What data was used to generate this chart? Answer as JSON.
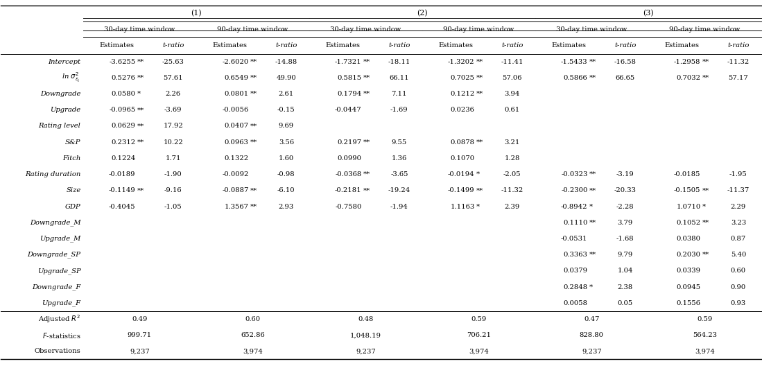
{
  "col_groups": [
    "(1)",
    "(2)",
    "(3)"
  ],
  "sub_labels": [
    "30-day time window",
    "90-day time window",
    "30-day time window",
    "90-day time window",
    "30-day time window",
    "90-day time window"
  ],
  "row_labels": [
    "Intercept",
    "ln_sigma",
    "Downgrade",
    "Upgrade",
    "Rating level",
    "S&P",
    "Fitch",
    "Rating duration",
    "Size",
    "GDP",
    "Downgrade_M",
    "Upgrade_M",
    "Downgrade_SP",
    "Upgrade_SP",
    "Downgrade_F",
    "Upgrade_F"
  ],
  "footer_labels": [
    "Adjusted R2",
    "F-statistics",
    "Observations"
  ],
  "data": {
    "col1_est": [
      "-3.6255",
      "0.5276",
      "0.0580",
      "-0.0965",
      "0.0629",
      "0.2312",
      "0.1224",
      "-0.0189",
      "-0.1149",
      "-0.4045",
      "",
      "",
      "",
      "",
      "",
      ""
    ],
    "col1_sig": [
      "**",
      "**",
      "*",
      "**",
      "**",
      "**",
      "",
      "",
      "**",
      "",
      "",
      "",
      "",
      "",
      "",
      ""
    ],
    "col1_t": [
      "-25.63",
      "57.61",
      "2.26",
      "-3.69",
      "17.92",
      "10.22",
      "1.71",
      "-1.90",
      "-9.16",
      "-1.05",
      "",
      "",
      "",
      "",
      "",
      ""
    ],
    "col2_est": [
      "-2.6020",
      "0.6549",
      "0.0801",
      "-0.0056",
      "0.0407",
      "0.0963",
      "0.1322",
      "-0.0092",
      "-0.0887",
      "1.3567",
      "",
      "",
      "",
      "",
      "",
      ""
    ],
    "col2_sig": [
      "**",
      "**",
      "**",
      "",
      "**",
      "**",
      "",
      "",
      "**",
      "**",
      "",
      "",
      "",
      "",
      "",
      ""
    ],
    "col2_t": [
      "-14.88",
      "49.90",
      "2.61",
      "-0.15",
      "9.69",
      "3.56",
      "1.60",
      "-0.98",
      "-6.10",
      "2.93",
      "",
      "",
      "",
      "",
      "",
      ""
    ],
    "col3_est": [
      "-1.7321",
      "0.5815",
      "0.1794",
      "-0.0447",
      "",
      "0.2197",
      "0.0990",
      "-0.0368",
      "-0.2181",
      "-0.7580",
      "",
      "",
      "",
      "",
      "",
      ""
    ],
    "col3_sig": [
      "**",
      "**",
      "**",
      "",
      "",
      "**",
      "",
      "**",
      "**",
      "",
      "",
      "",
      "",
      "",
      "",
      ""
    ],
    "col3_t": [
      "-18.11",
      "66.11",
      "7.11",
      "-1.69",
      "",
      "9.55",
      "1.36",
      "-3.65",
      "-19.24",
      "-1.94",
      "",
      "",
      "",
      "",
      "",
      ""
    ],
    "col4_est": [
      "-1.3202",
      "0.7025",
      "0.1212",
      "0.0236",
      "",
      "0.0878",
      "0.1070",
      "-0.0194",
      "-0.1499",
      "1.1163",
      "",
      "",
      "",
      "",
      "",
      ""
    ],
    "col4_sig": [
      "**",
      "**",
      "**",
      "",
      "",
      "**",
      "",
      "*",
      "**",
      "*",
      "",
      "",
      "",
      "",
      "",
      ""
    ],
    "col4_t": [
      "-11.41",
      "57.06",
      "3.94",
      "0.61",
      "",
      "3.21",
      "1.28",
      "-2.05",
      "-11.32",
      "2.39",
      "",
      "",
      "",
      "",
      "",
      ""
    ],
    "col5_est": [
      "-1.5433",
      "0.5866",
      "",
      "",
      "",
      "",
      "",
      "-0.0323",
      "-0.2300",
      "-0.8942",
      "0.1110",
      "-0.0531",
      "0.3363",
      "0.0379",
      "0.2848",
      "0.0058"
    ],
    "col5_sig": [
      "**",
      "**",
      "",
      "",
      "",
      "",
      "",
      "**",
      "**",
      "*",
      "**",
      "",
      "**",
      "",
      "*",
      ""
    ],
    "col5_t": [
      "-16.58",
      "66.65",
      "",
      "",
      "",
      "",
      "",
      "-3.19",
      "-20.33",
      "-2.28",
      "3.79",
      "-1.68",
      "9.79",
      "1.04",
      "2.38",
      "0.05"
    ],
    "col6_est": [
      "-1.2958",
      "0.7032",
      "",
      "",
      "",
      "",
      "",
      "-0.0185",
      "-0.1505",
      "1.0710",
      "0.1052",
      "0.0380",
      "0.2030",
      "0.0339",
      "0.0945",
      "0.1556"
    ],
    "col6_sig": [
      "**",
      "**",
      "",
      "",
      "",
      "",
      "",
      "",
      "**",
      "*",
      "**",
      "",
      "**",
      "",
      "",
      ""
    ],
    "col6_t": [
      "-11.32",
      "57.17",
      "",
      "",
      "",
      "",
      "",
      "-1.95",
      "-11.37",
      "2.29",
      "3.23",
      "0.87",
      "5.40",
      "0.60",
      "0.90",
      "0.93"
    ]
  },
  "footer": {
    "adj_r2": [
      "0.49",
      "0.60",
      "0.48",
      "0.59",
      "0.47",
      "0.59"
    ],
    "f_stat": [
      "999.71",
      "652.86",
      "1,048.19",
      "706.21",
      "828.80",
      "564.23"
    ],
    "obs": [
      "9,237",
      "3,974",
      "9,237",
      "3,974",
      "9,237",
      "3,974"
    ]
  },
  "figsize": [
    10.99,
    5.28
  ],
  "dpi": 100
}
